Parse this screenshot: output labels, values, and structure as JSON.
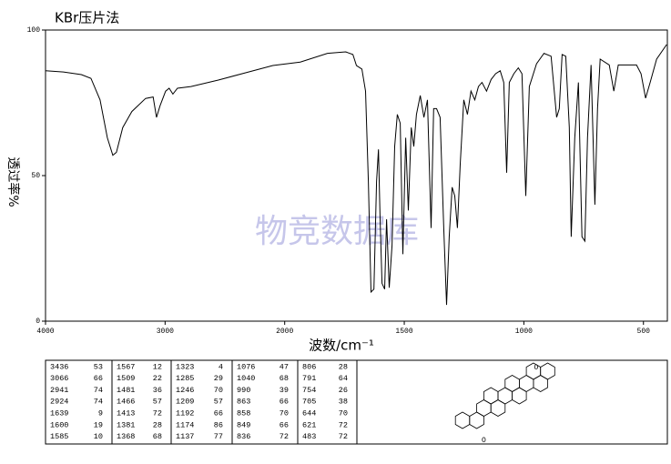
{
  "chart_data": {
    "type": "line",
    "title": "KBr压片法",
    "xlabel": "波数/cm⁻¹",
    "ylabel": "透过率%",
    "watermark": "物竞数据库",
    "xlim": [
      4000,
      400
    ],
    "xticks": [
      4000,
      3000,
      2000,
      1500,
      1000,
      500
    ],
    "ylim": [
      0,
      100
    ],
    "yticks": [
      0,
      50,
      100
    ],
    "grid": false,
    "series": [
      {
        "name": null,
        "color": "#000000",
        "x": [
          4000,
          3850,
          3700,
          3620,
          3544,
          3483,
          3437,
          3407,
          3354,
          3278,
          3163,
          3100,
          3072,
          3042,
          2996,
          2966,
          2935,
          2897,
          2783,
          2555,
          2327,
          2099,
          1935,
          1821,
          1745,
          1715,
          1700,
          1677,
          1662,
          1650,
          1639,
          1627,
          1616,
          1608,
          1601,
          1593,
          1582,
          1574,
          1563,
          1551,
          1540,
          1529,
          1517,
          1506,
          1494,
          1483,
          1471,
          1460,
          1449,
          1433,
          1418,
          1403,
          1388,
          1377,
          1365,
          1350,
          1335,
          1323,
          1312,
          1300,
          1289,
          1278,
          1266,
          1251,
          1236,
          1221,
          1205,
          1190,
          1175,
          1156,
          1137,
          1118,
          1099,
          1084,
          1072,
          1061,
          1042,
          1023,
          1008,
          992,
          977,
          947,
          916,
          886,
          863,
          852,
          840,
          825,
          810,
          802,
          787,
          772,
          757,
          745,
          734,
          719,
          703,
          692,
          681,
          643,
          624,
          605,
          529,
          510,
          491,
          472,
          445,
          403
        ],
        "values": [
          86,
          85.6,
          84.7,
          83.4,
          76,
          63,
          57,
          58,
          66.5,
          72,
          76.5,
          77,
          70,
          74,
          79,
          80,
          78,
          80,
          80.6,
          82.8,
          85.3,
          87.8,
          89,
          92,
          92.5,
          91.6,
          87.8,
          86.6,
          79,
          48,
          10,
          11,
          48,
          59,
          35,
          13,
          11,
          35,
          11.5,
          26,
          60,
          71,
          68,
          23,
          63,
          38,
          66.5,
          60,
          71,
          77.5,
          70,
          76,
          32,
          73,
          73,
          70,
          32,
          5.6,
          29,
          46,
          43,
          32,
          54,
          76,
          71,
          79,
          76,
          80.6,
          82,
          79,
          83,
          85,
          86,
          82,
          51,
          82,
          85,
          87,
          85,
          43,
          80.6,
          88.4,
          92,
          91,
          70,
          73,
          91.6,
          91,
          66.6,
          29,
          63,
          82,
          29,
          27.5,
          63,
          88,
          40,
          73,
          90,
          88,
          79,
          88,
          88,
          85,
          76.6,
          82,
          90,
          95
        ]
      }
    ]
  },
  "peak_table": [
    [
      [
        3436,
        53
      ],
      [
        3066,
        66
      ],
      [
        2941,
        74
      ],
      [
        2924,
        74
      ],
      [
        1639,
        9
      ],
      [
        1600,
        19
      ],
      [
        1585,
        10
      ]
    ],
    [
      [
        1567,
        12
      ],
      [
        1509,
        22
      ],
      [
        1481,
        36
      ],
      [
        1466,
        57
      ],
      [
        1413,
        72
      ],
      [
        1381,
        28
      ],
      [
        1368,
        68
      ]
    ],
    [
      [
        1323,
        4
      ],
      [
        1285,
        29
      ],
      [
        1246,
        70
      ],
      [
        1209,
        57
      ],
      [
        1192,
        66
      ],
      [
        1174,
        86
      ],
      [
        1137,
        77
      ]
    ],
    [
      [
        1076,
        47
      ],
      [
        1040,
        68
      ],
      [
        990,
        39
      ],
      [
        863,
        66
      ],
      [
        858,
        70
      ],
      [
        849,
        66
      ],
      [
        836,
        72
      ]
    ],
    [
      [
        806,
        28
      ],
      [
        791,
        64
      ],
      [
        754,
        26
      ],
      [
        705,
        38
      ],
      [
        644,
        70
      ],
      [
        621,
        72
      ],
      [
        483,
        72
      ]
    ]
  ],
  "structure": {
    "atoms": [
      "O",
      "O"
    ]
  }
}
